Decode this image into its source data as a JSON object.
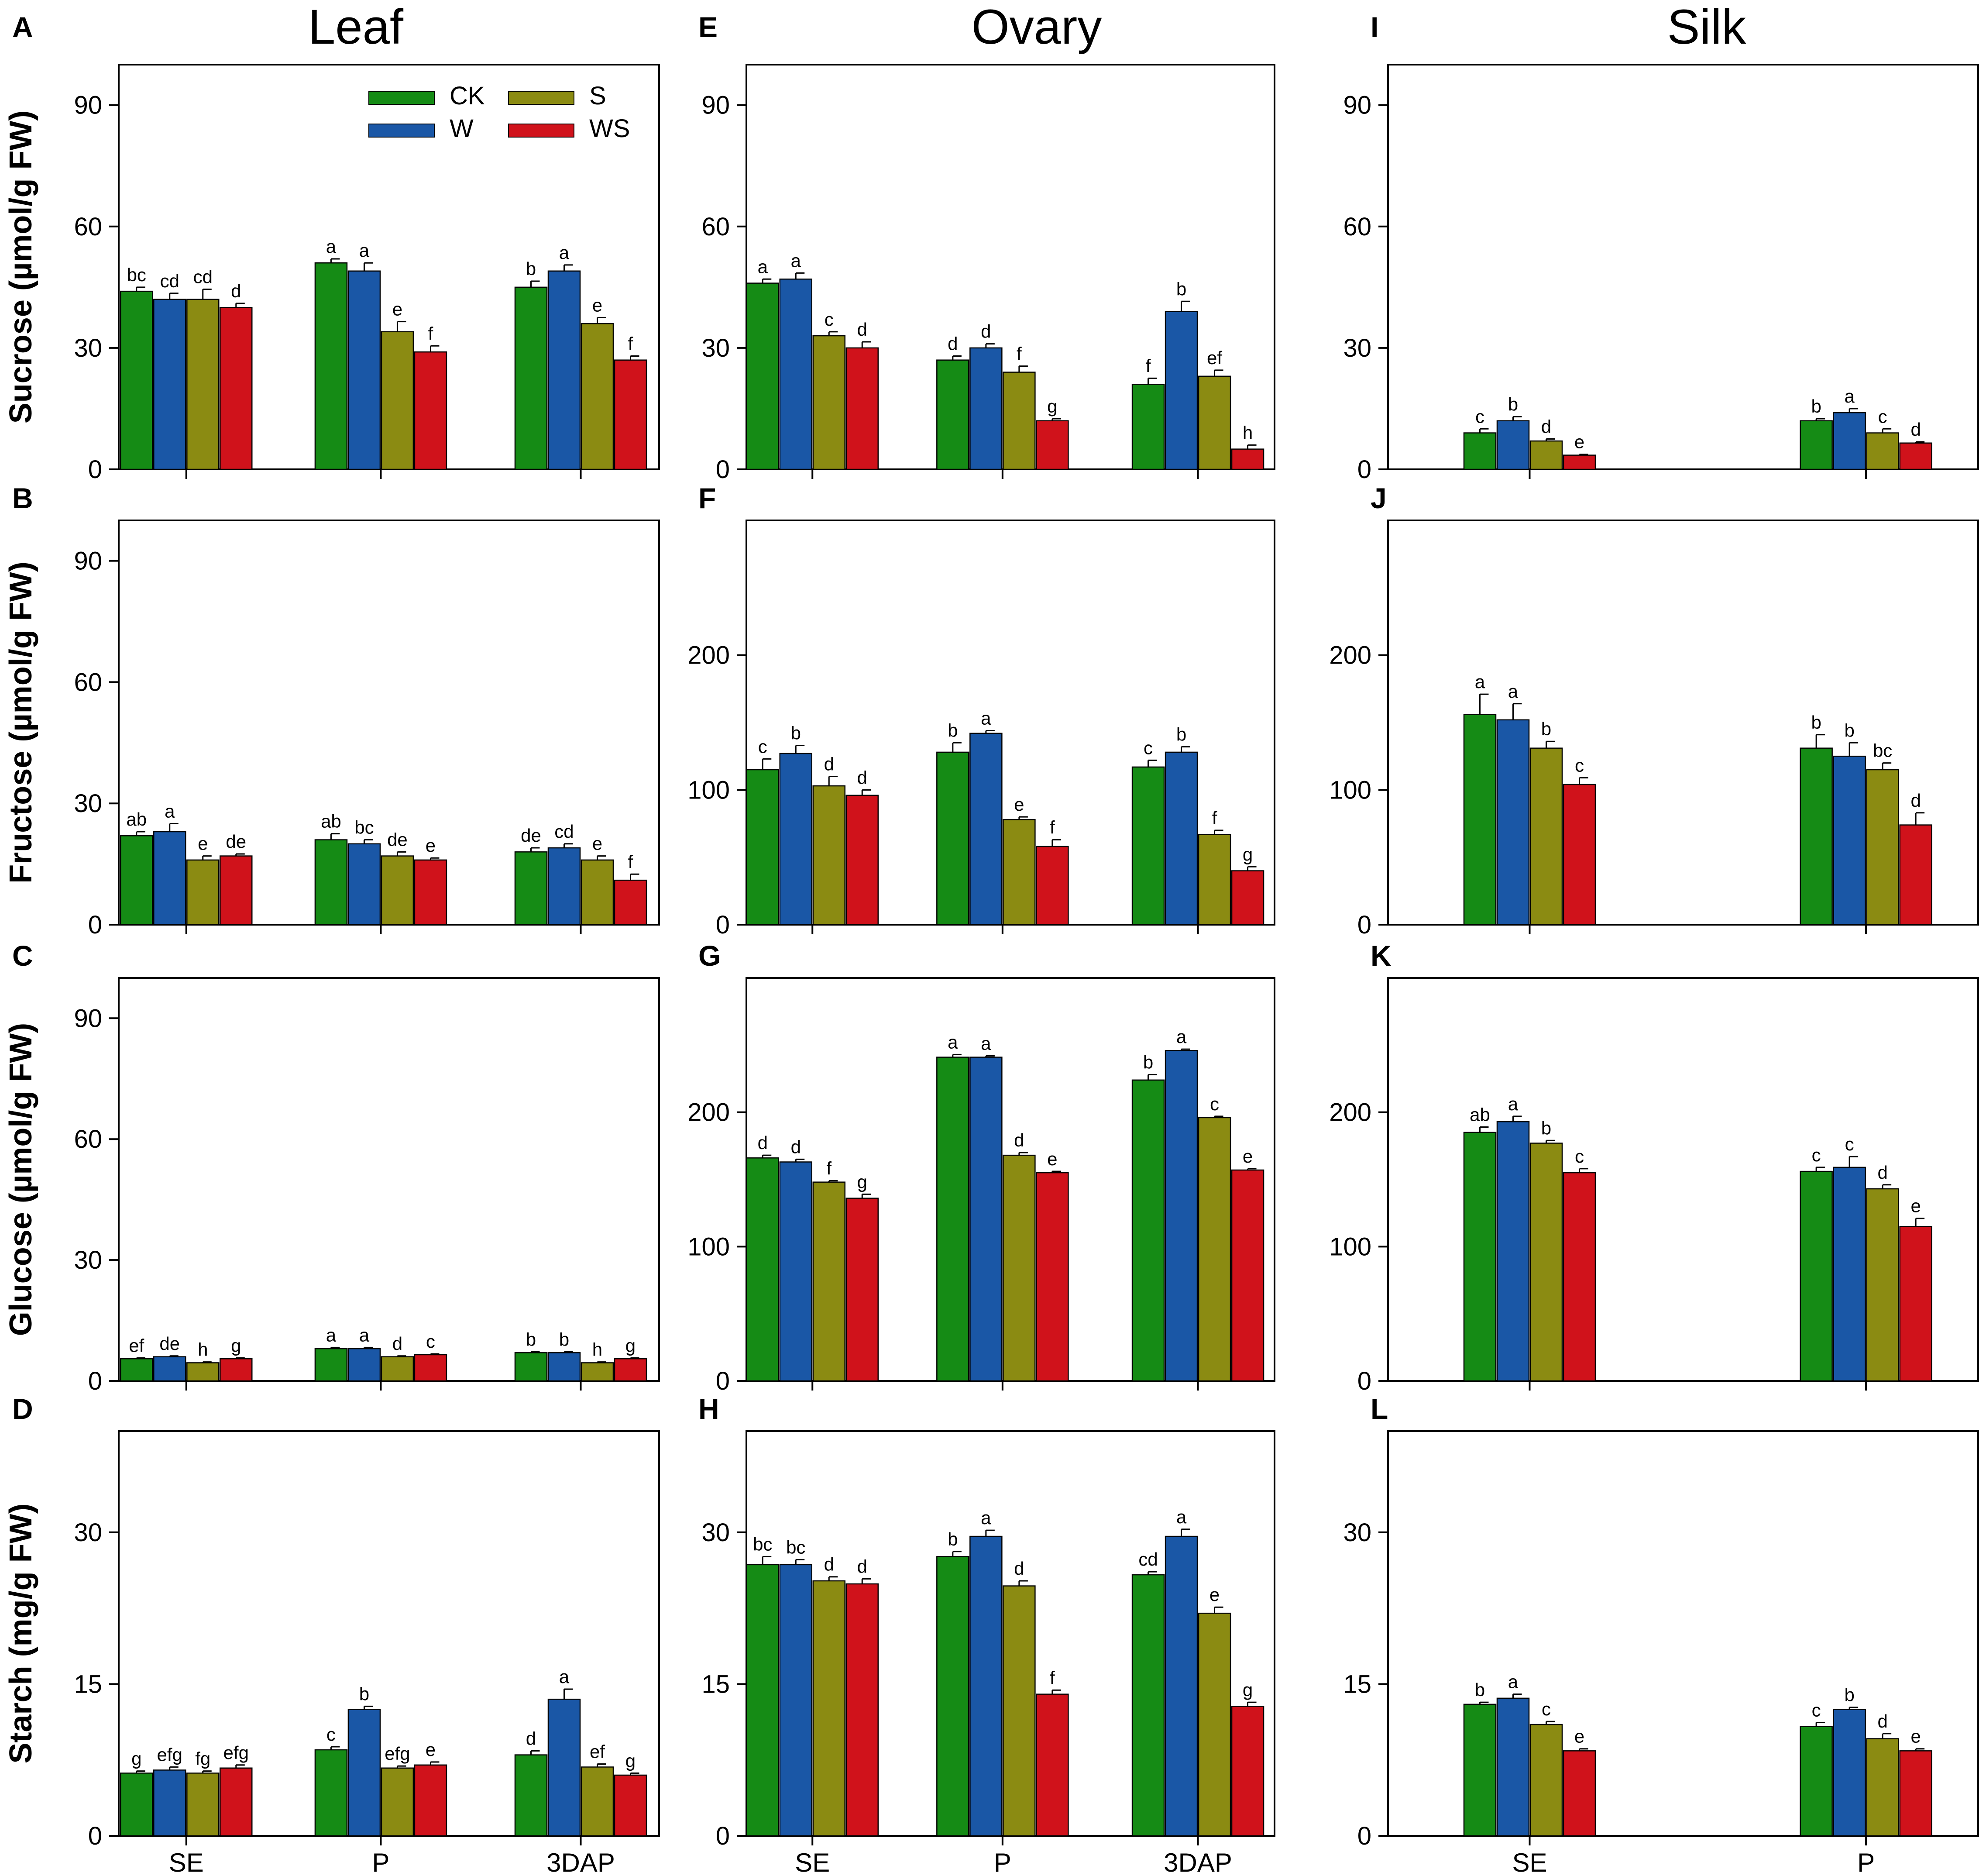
{
  "colors": {
    "CK": "#158b15",
    "W": "#1a57a6",
    "S": "#8b8b12",
    "WS": "#d0121b",
    "axis": "#000000"
  },
  "legend": [
    {
      "key": "CK",
      "label": "CK"
    },
    {
      "key": "W",
      "label": "W"
    },
    {
      "key": "S",
      "label": "S"
    },
    {
      "key": "WS",
      "label": "WS"
    }
  ],
  "columns": [
    "Leaf",
    "Ovary",
    "Silk"
  ],
  "row_ylabels": [
    "Sucrose (µmol/g FW)",
    "Fructose (µmol/g FW)",
    "Glucose (µmol/g FW)",
    "Starch (mg/g FW)"
  ],
  "chart_data": [
    {
      "panel": "A",
      "column": "Leaf",
      "type": "bar",
      "ylabel": "Sucrose (µmol/g FW)",
      "ylim": [
        0,
        100
      ],
      "yticks": [
        0,
        30,
        60,
        90
      ],
      "categories": [
        "SE",
        "P",
        "3DAP"
      ],
      "series": [
        {
          "name": "CK",
          "values": [
            44,
            51,
            45
          ],
          "errors": [
            1,
            1,
            1.5
          ],
          "letters": [
            "bc",
            "a",
            "b"
          ]
        },
        {
          "name": "W",
          "values": [
            42,
            49,
            49
          ],
          "errors": [
            1.5,
            2,
            1.5
          ],
          "letters": [
            "cd",
            "a",
            "a"
          ]
        },
        {
          "name": "S",
          "values": [
            42,
            34,
            36
          ],
          "errors": [
            2.5,
            2.5,
            1.5
          ],
          "letters": [
            "cd",
            "e",
            "e"
          ]
        },
        {
          "name": "WS",
          "values": [
            40,
            29,
            27
          ],
          "errors": [
            1,
            1.5,
            1
          ],
          "letters": [
            "d",
            "f",
            "f"
          ]
        }
      ]
    },
    {
      "panel": "B",
      "column": "Leaf",
      "type": "bar",
      "ylabel": "Fructose (µmol/g FW)",
      "ylim": [
        0,
        100
      ],
      "yticks": [
        0,
        30,
        60,
        90
      ],
      "categories": [
        "SE",
        "P",
        "3DAP"
      ],
      "series": [
        {
          "name": "CK",
          "values": [
            22,
            21,
            18
          ],
          "errors": [
            1,
            1.5,
            1
          ],
          "letters": [
            "ab",
            "ab",
            "de"
          ]
        },
        {
          "name": "W",
          "values": [
            23,
            20,
            19
          ],
          "errors": [
            2,
            1,
            1
          ],
          "letters": [
            "a",
            "bc",
            "cd"
          ]
        },
        {
          "name": "S",
          "values": [
            16,
            17,
            16
          ],
          "errors": [
            1,
            1,
            1
          ],
          "letters": [
            "e",
            "de",
            "e"
          ]
        },
        {
          "name": "WS",
          "values": [
            17,
            16,
            11
          ],
          "errors": [
            0.5,
            0.5,
            1.5
          ],
          "letters": [
            "de",
            "e",
            "f"
          ]
        }
      ]
    },
    {
      "panel": "C",
      "column": "Leaf",
      "type": "bar",
      "ylabel": "Glucose (µmol/g FW)",
      "ylim": [
        0,
        100
      ],
      "yticks": [
        0,
        30,
        60,
        90
      ],
      "categories": [
        "SE",
        "P",
        "3DAP"
      ],
      "series": [
        {
          "name": "CK",
          "values": [
            5.5,
            8,
            7
          ],
          "errors": [
            0.2,
            0.3,
            0.2
          ],
          "letters": [
            "ef",
            "a",
            "b"
          ]
        },
        {
          "name": "W",
          "values": [
            6,
            8,
            7
          ],
          "errors": [
            0.2,
            0.3,
            0.2
          ],
          "letters": [
            "de",
            "a",
            "b"
          ]
        },
        {
          "name": "S",
          "values": [
            4.5,
            6,
            4.5
          ],
          "errors": [
            0.2,
            0.2,
            0.2
          ],
          "letters": [
            "h",
            "d",
            "h"
          ]
        },
        {
          "name": "WS",
          "values": [
            5.5,
            6.5,
            5.5
          ],
          "errors": [
            0.2,
            0.2,
            0.2
          ],
          "letters": [
            "g",
            "c",
            "g"
          ]
        }
      ]
    },
    {
      "panel": "D",
      "column": "Leaf",
      "type": "bar",
      "ylabel": "Starch (mg/g FW)",
      "ylim": [
        0,
        40
      ],
      "yticks": [
        0,
        15,
        30
      ],
      "categories": [
        "SE",
        "P",
        "3DAP"
      ],
      "series": [
        {
          "name": "CK",
          "values": [
            6.2,
            8.5,
            8
          ],
          "errors": [
            0.2,
            0.3,
            0.4
          ],
          "letters": [
            "g",
            "c",
            "d"
          ]
        },
        {
          "name": "W",
          "values": [
            6.5,
            12.5,
            13.5
          ],
          "errors": [
            0.3,
            0.3,
            1
          ],
          "letters": [
            "efg",
            "b",
            "a"
          ]
        },
        {
          "name": "S",
          "values": [
            6.2,
            6.7,
            6.8
          ],
          "errors": [
            0.2,
            0.2,
            0.3
          ],
          "letters": [
            "fg",
            "efg",
            "ef"
          ]
        },
        {
          "name": "WS",
          "values": [
            6.7,
            7,
            6
          ],
          "errors": [
            0.3,
            0.3,
            0.2
          ],
          "letters": [
            "efg",
            "e",
            "g"
          ]
        }
      ]
    },
    {
      "panel": "E",
      "column": "Ovary",
      "type": "bar",
      "ylabel": "Sucrose (µmol/g FW)",
      "ylim": [
        0,
        100
      ],
      "yticks": [
        0,
        30,
        60,
        90
      ],
      "categories": [
        "SE",
        "P",
        "3DAP"
      ],
      "series": [
        {
          "name": "CK",
          "values": [
            46,
            27,
            21
          ],
          "errors": [
            1,
            1,
            1.5
          ],
          "letters": [
            "a",
            "d",
            "f"
          ]
        },
        {
          "name": "W",
          "values": [
            47,
            30,
            39
          ],
          "errors": [
            1.5,
            1,
            2.5
          ],
          "letters": [
            "a",
            "d",
            "b"
          ]
        },
        {
          "name": "S",
          "values": [
            33,
            24,
            23
          ],
          "errors": [
            1,
            1.5,
            1.5
          ],
          "letters": [
            "c",
            "f",
            "ef"
          ]
        },
        {
          "name": "WS",
          "values": [
            30,
            12,
            5
          ],
          "errors": [
            1.5,
            0.5,
            1
          ],
          "letters": [
            "d",
            "g",
            "h"
          ]
        }
      ]
    },
    {
      "panel": "F",
      "column": "Ovary",
      "type": "bar",
      "ylabel": "Fructose (µmol/g FW)",
      "ylim": [
        0,
        300
      ],
      "yticks": [
        0,
        100,
        200
      ],
      "categories": [
        "SE",
        "P",
        "3DAP"
      ],
      "series": [
        {
          "name": "CK",
          "values": [
            115,
            128,
            117
          ],
          "errors": [
            8,
            7,
            5
          ],
          "letters": [
            "c",
            "b",
            "c"
          ]
        },
        {
          "name": "W",
          "values": [
            127,
            142,
            128
          ],
          "errors": [
            6,
            2,
            4
          ],
          "letters": [
            "b",
            "a",
            "b"
          ]
        },
        {
          "name": "S",
          "values": [
            103,
            78,
            67
          ],
          "errors": [
            7,
            2,
            3
          ],
          "letters": [
            "d",
            "e",
            "f"
          ]
        },
        {
          "name": "WS",
          "values": [
            96,
            58,
            40
          ],
          "errors": [
            4,
            5,
            3
          ],
          "letters": [
            "d",
            "f",
            "g"
          ]
        }
      ]
    },
    {
      "panel": "G",
      "column": "Ovary",
      "type": "bar",
      "ylabel": "Glucose (µmol/g FW)",
      "ylim": [
        0,
        300
      ],
      "yticks": [
        0,
        100,
        200
      ],
      "categories": [
        "SE",
        "P",
        "3DAP"
      ],
      "series": [
        {
          "name": "CK",
          "values": [
            166,
            241,
            224
          ],
          "errors": [
            2,
            2,
            4
          ],
          "letters": [
            "d",
            "a",
            "b"
          ]
        },
        {
          "name": "W",
          "values": [
            163,
            241,
            246
          ],
          "errors": [
            2,
            1,
            1
          ],
          "letters": [
            "d",
            "a",
            "a"
          ]
        },
        {
          "name": "S",
          "values": [
            148,
            168,
            196
          ],
          "errors": [
            1,
            2,
            1
          ],
          "letters": [
            "f",
            "d",
            "c"
          ]
        },
        {
          "name": "WS",
          "values": [
            136,
            155,
            157
          ],
          "errors": [
            3,
            1,
            1
          ],
          "letters": [
            "g",
            "e",
            "e"
          ]
        }
      ]
    },
    {
      "panel": "H",
      "column": "Ovary",
      "type": "bar",
      "ylabel": "Starch (mg/g FW)",
      "ylim": [
        0,
        40
      ],
      "yticks": [
        0,
        15,
        30
      ],
      "categories": [
        "SE",
        "P",
        "3DAP"
      ],
      "series": [
        {
          "name": "CK",
          "values": [
            26.8,
            27.6,
            25.8
          ],
          "errors": [
            0.8,
            0.5,
            0.3
          ],
          "letters": [
            "bc",
            "b",
            "cd"
          ]
        },
        {
          "name": "W",
          "values": [
            26.8,
            29.6,
            29.6
          ],
          "errors": [
            0.5,
            0.6,
            0.7
          ],
          "letters": [
            "bc",
            "a",
            "a"
          ]
        },
        {
          "name": "S",
          "values": [
            25.2,
            24.7,
            22
          ],
          "errors": [
            0.4,
            0.5,
            0.6
          ],
          "letters": [
            "d",
            "d",
            "e"
          ]
        },
        {
          "name": "WS",
          "values": [
            24.9,
            14,
            12.8
          ],
          "errors": [
            0.5,
            0.4,
            0.4
          ],
          "letters": [
            "d",
            "f",
            "g"
          ]
        }
      ]
    },
    {
      "panel": "I",
      "column": "Silk",
      "type": "bar",
      "ylabel": "Sucrose (µmol/g FW)",
      "ylim": [
        0,
        100
      ],
      "yticks": [
        0,
        30,
        60,
        90
      ],
      "categories": [
        "SE",
        "P"
      ],
      "series": [
        {
          "name": "CK",
          "values": [
            9,
            12
          ],
          "errors": [
            1,
            0.5
          ],
          "letters": [
            "c",
            "b"
          ]
        },
        {
          "name": "W",
          "values": [
            12,
            14
          ],
          "errors": [
            1,
            1
          ],
          "letters": [
            "b",
            "a"
          ]
        },
        {
          "name": "S",
          "values": [
            7,
            9
          ],
          "errors": [
            0.5,
            1
          ],
          "letters": [
            "d",
            "c"
          ]
        },
        {
          "name": "WS",
          "values": [
            3.5,
            6.5
          ],
          "errors": [
            0.2,
            0.3
          ],
          "letters": [
            "e",
            "d"
          ]
        }
      ]
    },
    {
      "panel": "J",
      "column": "Silk",
      "type": "bar",
      "ylabel": "Fructose (µmol/g FW)",
      "ylim": [
        0,
        300
      ],
      "yticks": [
        0,
        100,
        200
      ],
      "categories": [
        "SE",
        "P"
      ],
      "series": [
        {
          "name": "CK",
          "values": [
            156,
            131
          ],
          "errors": [
            15,
            10
          ],
          "letters": [
            "a",
            "b"
          ]
        },
        {
          "name": "W",
          "values": [
            152,
            125
          ],
          "errors": [
            12,
            10
          ],
          "letters": [
            "a",
            "b"
          ]
        },
        {
          "name": "S",
          "values": [
            131,
            115
          ],
          "errors": [
            5,
            5
          ],
          "letters": [
            "b",
            "bc"
          ]
        },
        {
          "name": "WS",
          "values": [
            104,
            74
          ],
          "errors": [
            5,
            9
          ],
          "letters": [
            "c",
            "d"
          ]
        }
      ]
    },
    {
      "panel": "K",
      "column": "Silk",
      "type": "bar",
      "ylabel": "Glucose (µmol/g FW)",
      "ylim": [
        0,
        300
      ],
      "yticks": [
        0,
        100,
        200
      ],
      "categories": [
        "SE",
        "P"
      ],
      "series": [
        {
          "name": "CK",
          "values": [
            185,
            156
          ],
          "errors": [
            4,
            3
          ],
          "letters": [
            "ab",
            "c"
          ]
        },
        {
          "name": "W",
          "values": [
            193,
            159
          ],
          "errors": [
            4,
            8
          ],
          "letters": [
            "a",
            "c"
          ]
        },
        {
          "name": "S",
          "values": [
            177,
            143
          ],
          "errors": [
            2,
            3
          ],
          "letters": [
            "b",
            "d"
          ]
        },
        {
          "name": "WS",
          "values": [
            155,
            115
          ],
          "errors": [
            3,
            6
          ],
          "letters": [
            "c",
            "e"
          ]
        }
      ]
    },
    {
      "panel": "L",
      "column": "Silk",
      "type": "bar",
      "ylabel": "Starch (mg/g FW)",
      "ylim": [
        0,
        40
      ],
      "yticks": [
        0,
        15,
        30
      ],
      "categories": [
        "SE",
        "P"
      ],
      "series": [
        {
          "name": "CK",
          "values": [
            13,
            10.8
          ],
          "errors": [
            0.2,
            0.4
          ],
          "letters": [
            "b",
            "c"
          ]
        },
        {
          "name": "W",
          "values": [
            13.6,
            12.5
          ],
          "errors": [
            0.4,
            0.2
          ],
          "letters": [
            "a",
            "b"
          ]
        },
        {
          "name": "S",
          "values": [
            11,
            9.6
          ],
          "errors": [
            0.3,
            0.5
          ],
          "letters": [
            "c",
            "d"
          ]
        },
        {
          "name": "WS",
          "values": [
            8.4,
            8.4
          ],
          "errors": [
            0.2,
            0.2
          ],
          "letters": [
            "e",
            "e"
          ]
        }
      ]
    }
  ]
}
